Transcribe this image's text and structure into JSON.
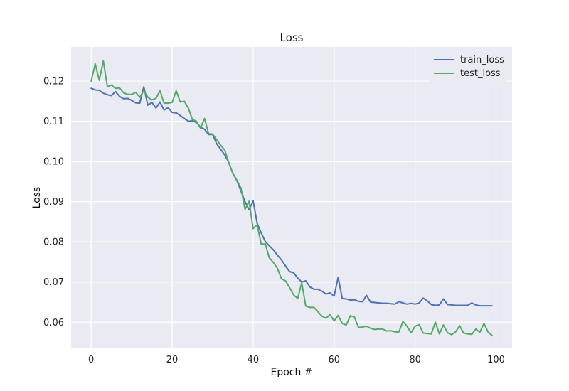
{
  "chart_data": {
    "type": "line",
    "title": "Loss",
    "xlabel": "Epoch #",
    "ylabel": "Loss",
    "xlim": [
      -4.95,
      103.95
    ],
    "ylim": [
      0.0535,
      0.1285
    ],
    "xticks": [
      0,
      20,
      40,
      60,
      80,
      100
    ],
    "yticks": [
      0.06,
      0.07,
      0.08,
      0.09,
      0.1,
      0.11,
      0.12
    ],
    "ytick_labels": [
      "0.06",
      "0.07",
      "0.08",
      "0.09",
      "0.10",
      "0.11",
      "0.12"
    ],
    "grid": true,
    "legend_position": "top-right",
    "series": [
      {
        "name": "train_loss",
        "color": "#4c72b0",
        "values": [
          0.1182,
          0.1178,
          0.1177,
          0.117,
          0.1166,
          0.1164,
          0.1174,
          0.1162,
          0.1156,
          0.1157,
          0.1152,
          0.1146,
          0.1145,
          0.1186,
          0.114,
          0.1147,
          0.1133,
          0.1148,
          0.1128,
          0.1134,
          0.1122,
          0.1121,
          0.1114,
          0.1107,
          0.11,
          0.1101,
          0.1097,
          0.1085,
          0.108,
          0.1067,
          0.1067,
          0.1044,
          0.103,
          0.1016,
          0.0997,
          0.097,
          0.0952,
          0.0926,
          0.09,
          0.088,
          0.0902,
          0.0846,
          0.0822,
          0.0801,
          0.079,
          0.078,
          0.0767,
          0.0755,
          0.074,
          0.0726,
          0.0723,
          0.071,
          0.07,
          0.0703,
          0.0688,
          0.0682,
          0.0682,
          0.0677,
          0.067,
          0.0673,
          0.0665,
          0.0712,
          0.0659,
          0.0658,
          0.0655,
          0.0656,
          0.0652,
          0.0651,
          0.0667,
          0.065,
          0.0649,
          0.0648,
          0.0647,
          0.0647,
          0.0646,
          0.0645,
          0.0651,
          0.0648,
          0.0645,
          0.0647,
          0.0645,
          0.0648,
          0.066,
          0.0653,
          0.0644,
          0.0642,
          0.0643,
          0.0658,
          0.0644,
          0.0643,
          0.0642,
          0.0642,
          0.0642,
          0.0642,
          0.0648,
          0.0643,
          0.0641,
          0.0641,
          0.0641,
          0.0641
        ]
      },
      {
        "name": "test_loss",
        "color": "#55a868",
        "values": [
          0.12,
          0.1243,
          0.1202,
          0.125,
          0.1186,
          0.119,
          0.1182,
          0.1183,
          0.1171,
          0.1167,
          0.1167,
          0.1172,
          0.116,
          0.1176,
          0.116,
          0.1153,
          0.1157,
          0.1176,
          0.1145,
          0.1145,
          0.1147,
          0.1176,
          0.1148,
          0.115,
          0.1133,
          0.1104,
          0.11,
          0.1083,
          0.1107,
          0.1069,
          0.1068,
          0.1054,
          0.104,
          0.1028,
          0.0996,
          0.097,
          0.0953,
          0.0934,
          0.0881,
          0.0901,
          0.0833,
          0.0842,
          0.0794,
          0.0795,
          0.076,
          0.0749,
          0.0734,
          0.0708,
          0.0703,
          0.0686,
          0.0668,
          0.0659,
          0.0698,
          0.064,
          0.0637,
          0.0637,
          0.0626,
          0.0615,
          0.061,
          0.0619,
          0.0603,
          0.0617,
          0.0597,
          0.0593,
          0.0616,
          0.0613,
          0.0587,
          0.0588,
          0.059,
          0.0585,
          0.0582,
          0.0583,
          0.0583,
          0.0578,
          0.0579,
          0.0576,
          0.0576,
          0.0602,
          0.059,
          0.0574,
          0.059,
          0.0594,
          0.0573,
          0.0572,
          0.0571,
          0.06,
          0.0571,
          0.0593,
          0.0574,
          0.0569,
          0.0576,
          0.0591,
          0.0573,
          0.0571,
          0.057,
          0.0583,
          0.0575,
          0.0597,
          0.0576,
          0.0567
        ]
      }
    ]
  }
}
